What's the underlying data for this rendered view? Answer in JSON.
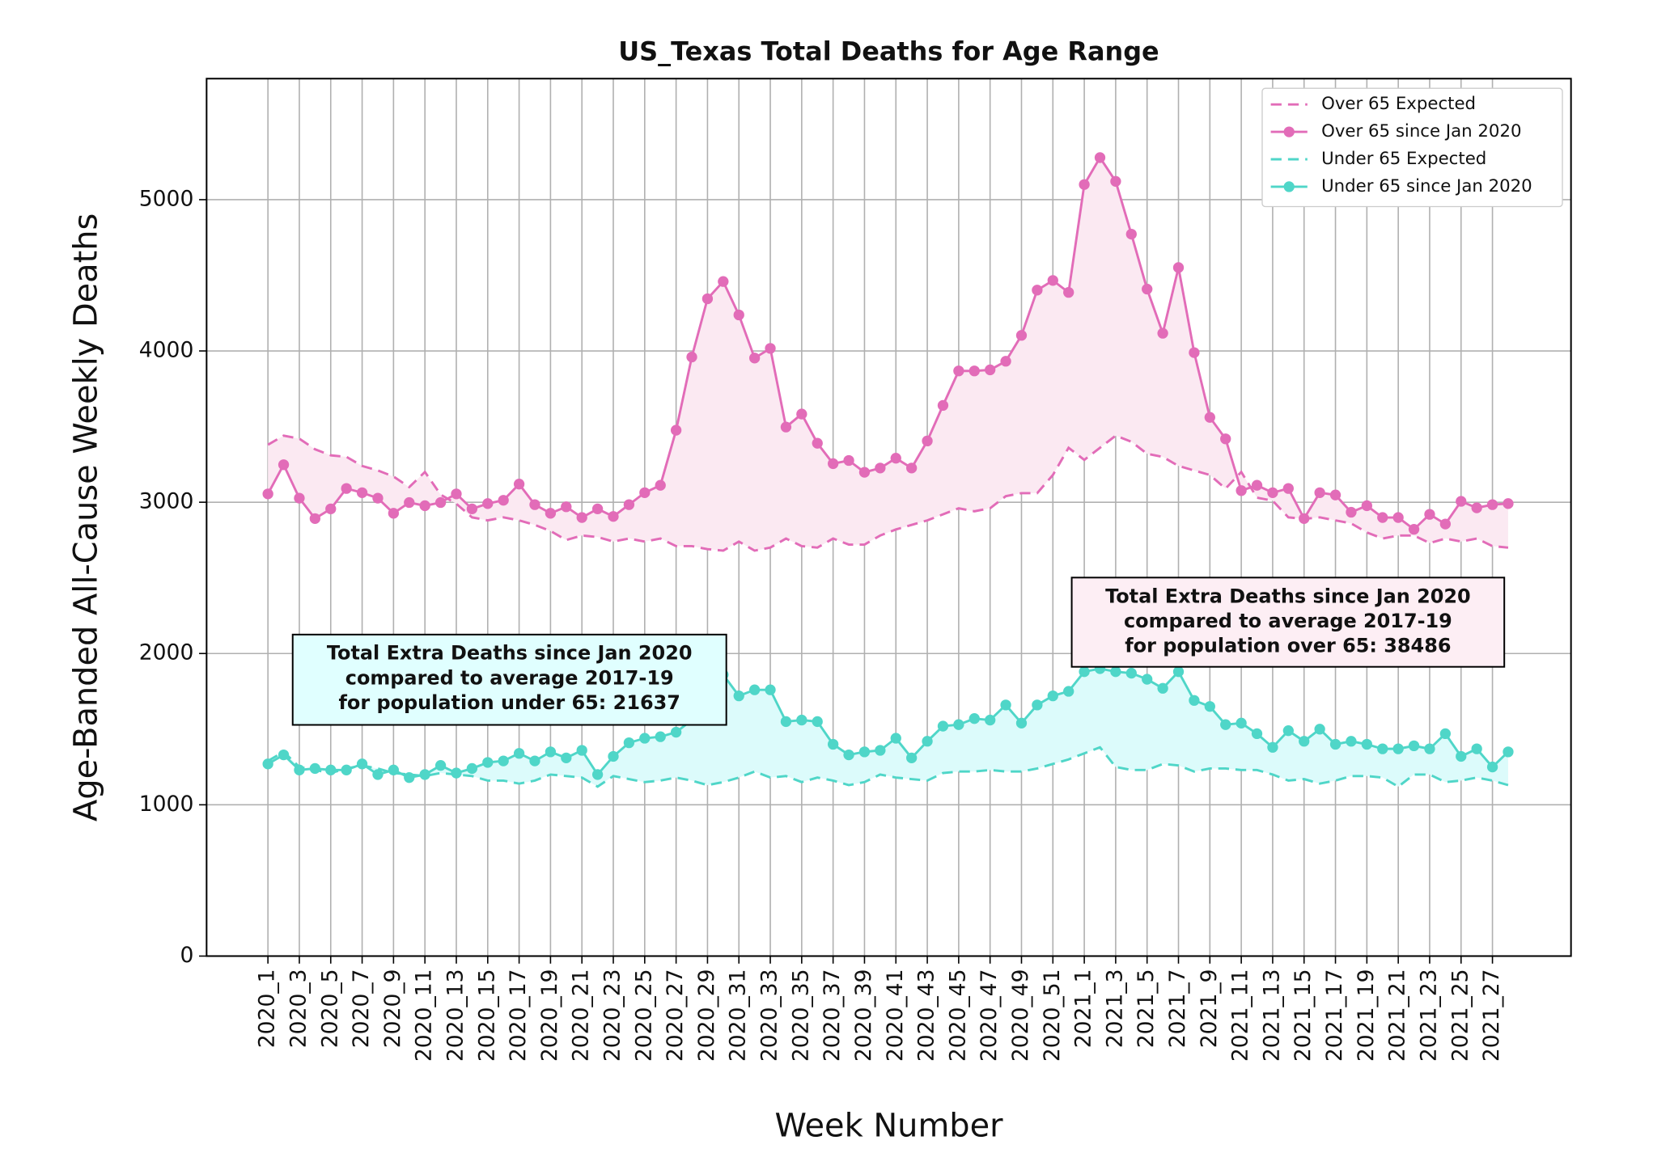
{
  "chart_data": {
    "type": "line",
    "title": "US_Texas Total Deaths for Age Range",
    "x_label": "Week Number",
    "y_label": "Age-Banded All-Cause Weekly Deaths",
    "categories": [
      "2020_1",
      null,
      "2020_3",
      null,
      "2020_5",
      null,
      "2020_7",
      null,
      "2020_9",
      null,
      "2020_11",
      null,
      "2020_13",
      null,
      "2020_15",
      null,
      "2020_17",
      null,
      "2020_19",
      null,
      "2020_21",
      null,
      "2020_23",
      null,
      "2020_25",
      null,
      "2020_27",
      null,
      "2020_29",
      null,
      "2020_31",
      null,
      "2020_33",
      null,
      "2020_35",
      null,
      "2020_37",
      null,
      "2020_39",
      null,
      "2020_41",
      null,
      "2020_43",
      null,
      "2020_45",
      null,
      "2020_47",
      null,
      "2020_49",
      null,
      "2020_51",
      null,
      "2021_1",
      null,
      "2021_3",
      null,
      "2021_5",
      null,
      "2021_7",
      null,
      "2021_9",
      null,
      "2021_11",
      null,
      "2021_13",
      null,
      "2021_15",
      null,
      "2021_17",
      null,
      "2021_19",
      null,
      "2021_21",
      null,
      "2021_23",
      null,
      "2021_25",
      null,
      "2021_27",
      null
    ],
    "ylim": [
      0,
      5800
    ],
    "yticks": [
      0,
      1000,
      2000,
      3000,
      4000,
      5000
    ],
    "grid": true,
    "legend": "upper right",
    "series": [
      {
        "name": "Over 65 Expected",
        "color": "#e26cb8",
        "style": "dashed",
        "values": [
          3380,
          3440,
          3420,
          3350,
          3310,
          3300,
          3240,
          3210,
          3170,
          3100,
          3200,
          3050,
          2990,
          2900,
          2880,
          2900,
          2880,
          2850,
          2810,
          2750,
          2780,
          2770,
          2740,
          2760,
          2740,
          2760,
          2710,
          2710,
          2690,
          2680,
          2740,
          2680,
          2700,
          2760,
          2710,
          2700,
          2760,
          2720,
          2720,
          2780,
          2820,
          2850,
          2880,
          2920,
          2960,
          2940,
          2960,
          3040,
          3060,
          3060,
          3180,
          3360,
          3280,
          3360,
          3440,
          3400,
          3320,
          3300,
          3240,
          3210,
          3180,
          3090,
          3200,
          3030,
          3010,
          2900,
          2890,
          2900,
          2880,
          2860,
          2800,
          2760,
          2780,
          2780,
          2730,
          2760,
          2740,
          2760,
          2710,
          2700
        ]
      },
      {
        "name": "Over 65 since Jan 2020",
        "color": "#e26cb8",
        "style": "solid",
        "fill": "#fbe9f2",
        "values": [
          3055,
          3248,
          3027,
          2892,
          2956,
          3091,
          3063,
          3027,
          2927,
          2998,
          2977,
          2998,
          3055,
          2956,
          2991,
          3013,
          3120,
          2984,
          2927,
          2970,
          2899,
          2956,
          2906,
          2984,
          3063,
          3112,
          3476,
          3960,
          4345,
          4459,
          4238,
          3953,
          4017,
          3497,
          3583,
          3390,
          3255,
          3276,
          3198,
          3226,
          3291,
          3226,
          3405,
          3640,
          3868,
          3868,
          3875,
          3932,
          4103,
          4402,
          4466,
          4387,
          5100,
          5278,
          5121,
          4772,
          4409,
          4117,
          4551,
          3989,
          3561,
          3419,
          3077,
          3112,
          3063,
          3091,
          2892,
          3063,
          3048,
          2934,
          2977,
          2899,
          2899,
          2821,
          2920,
          2856,
          3006,
          2963,
          2984,
          2991
        ]
      },
      {
        "name": "Under 65 Expected",
        "color": "#4fd6c8",
        "style": "dashed",
        "values": [
          1290,
          1350,
          1250,
          1230,
          1210,
          1240,
          1260,
          1240,
          1210,
          1200,
          1190,
          1210,
          1200,
          1190,
          1160,
          1160,
          1140,
          1160,
          1200,
          1190,
          1180,
          1120,
          1190,
          1170,
          1150,
          1160,
          1180,
          1160,
          1130,
          1150,
          1180,
          1220,
          1180,
          1190,
          1150,
          1180,
          1160,
          1130,
          1150,
          1200,
          1180,
          1170,
          1160,
          1210,
          1220,
          1220,
          1230,
          1220,
          1220,
          1240,
          1270,
          1300,
          1340,
          1380,
          1250,
          1230,
          1230,
          1270,
          1260,
          1220,
          1240,
          1240,
          1230,
          1230,
          1200,
          1160,
          1170,
          1140,
          1160,
          1190,
          1190,
          1180,
          1120,
          1200,
          1200,
          1150,
          1160,
          1180,
          1160,
          1130
        ]
      },
      {
        "name": "Under 65 since Jan 2020",
        "color": "#4fd6c8",
        "style": "solid",
        "fill": "#dcfbfb",
        "values": [
          1270,
          1330,
          1230,
          1240,
          1230,
          1230,
          1270,
          1200,
          1230,
          1180,
          1200,
          1260,
          1210,
          1240,
          1280,
          1290,
          1340,
          1290,
          1350,
          1310,
          1360,
          1200,
          1320,
          1410,
          1440,
          1450,
          1480,
          1560,
          1720,
          1860,
          1720,
          1760,
          1760,
          1550,
          1560,
          1550,
          1400,
          1330,
          1350,
          1360,
          1440,
          1310,
          1420,
          1520,
          1530,
          1570,
          1560,
          1660,
          1540,
          1660,
          1720,
          1750,
          1880,
          1900,
          1880,
          1870,
          1830,
          1770,
          1880,
          1690,
          1650,
          1530,
          1540,
          1470,
          1380,
          1490,
          1420,
          1500,
          1400,
          1420,
          1400,
          1370,
          1370,
          1390,
          1370,
          1470,
          1320,
          1370,
          1250,
          1350
        ]
      }
    ],
    "annotations": [
      {
        "lines": [
          "Total Extra Deaths since Jan 2020",
          "compared to average 2017-19",
          "for population under 65: 21637"
        ]
      },
      {
        "lines": [
          "Total Extra Deaths since Jan 2020",
          "compared to average 2017-19",
          "for population over 65: 38486"
        ]
      }
    ]
  }
}
